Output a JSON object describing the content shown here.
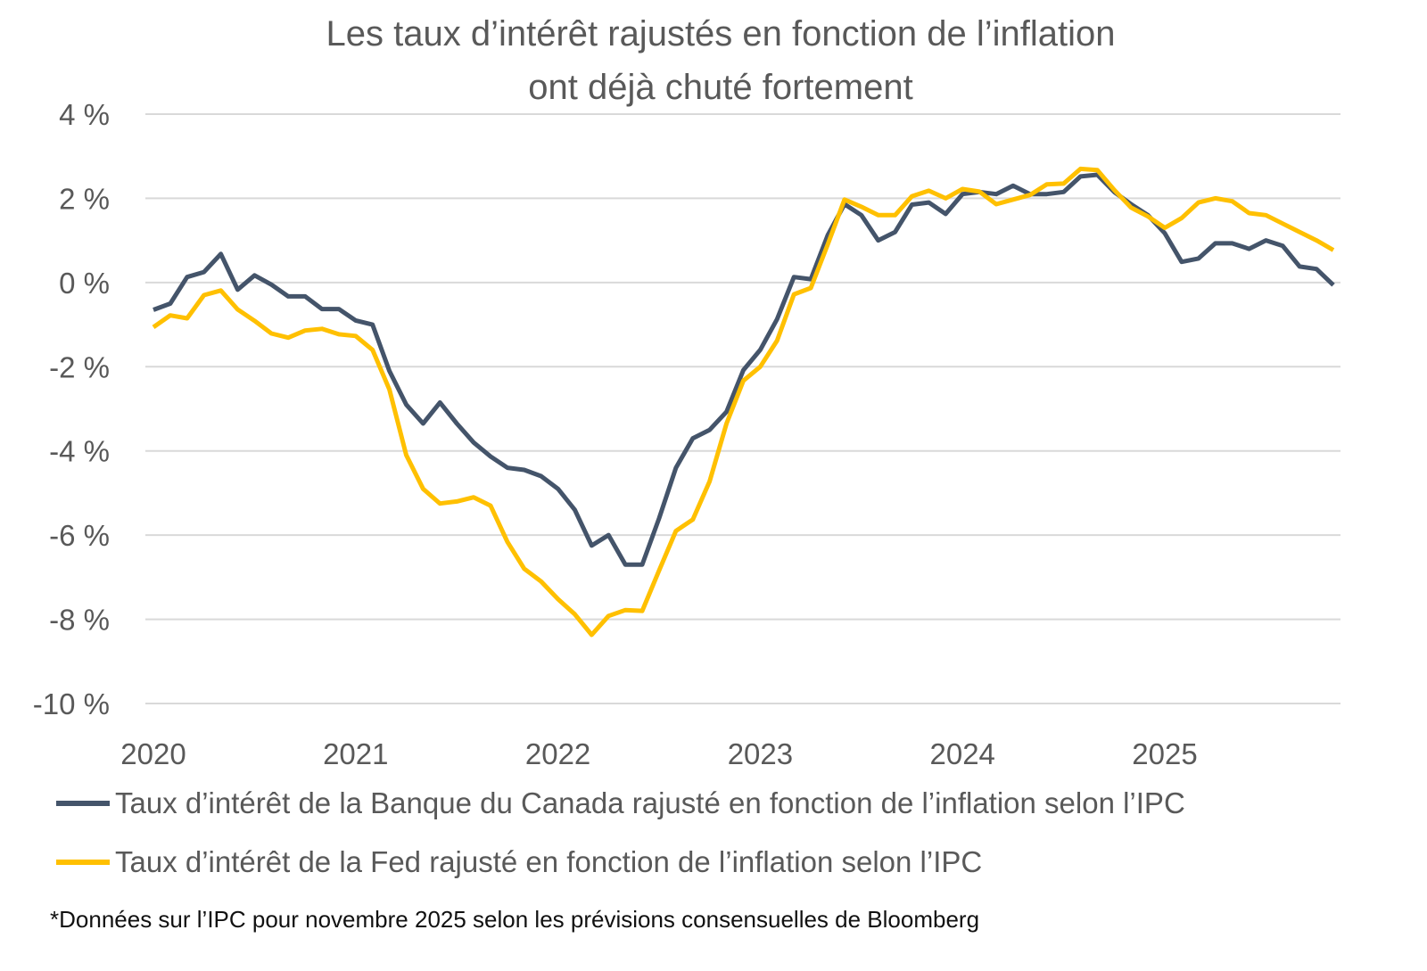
{
  "chart_data": {
    "type": "line",
    "title": [
      "Les taux d’intérêt rajustés en fonction de l’inflation",
      "ont déjà chuté fortement"
    ],
    "xlabel": "",
    "ylabel": "",
    "ylim": [
      -10,
      4
    ],
    "y_ticks": [
      4,
      2,
      0,
      -2,
      -4,
      -6,
      -8,
      -10
    ],
    "y_tick_labels": [
      "4 %",
      "2 %",
      "0 %",
      "-2 %",
      "-4 %",
      "-6 %",
      "-8 %",
      "-10 %"
    ],
    "x_tick_labels": [
      "2020",
      "2021",
      "2022",
      "2023",
      "2024",
      "2025"
    ],
    "grid": true,
    "legend_position": "bottom",
    "x": [
      "2020-01",
      "2020-02",
      "2020-03",
      "2020-04",
      "2020-05",
      "2020-06",
      "2020-07",
      "2020-08",
      "2020-09",
      "2020-10",
      "2020-11",
      "2020-12",
      "2021-01",
      "2021-02",
      "2021-03",
      "2021-04",
      "2021-05",
      "2021-06",
      "2021-07",
      "2021-08",
      "2021-09",
      "2021-10",
      "2021-11",
      "2021-12",
      "2022-01",
      "2022-02",
      "2022-03",
      "2022-04",
      "2022-05",
      "2022-06",
      "2022-07",
      "2022-08",
      "2022-09",
      "2022-10",
      "2022-11",
      "2022-12",
      "2023-01",
      "2023-02",
      "2023-03",
      "2023-04",
      "2023-05",
      "2023-06",
      "2023-07",
      "2023-08",
      "2023-09",
      "2023-10",
      "2023-11",
      "2023-12",
      "2024-01",
      "2024-02",
      "2024-03",
      "2024-04",
      "2024-05",
      "2024-06",
      "2024-07",
      "2024-08",
      "2024-09",
      "2024-10",
      "2024-11",
      "2024-12",
      "2025-01",
      "2025-02",
      "2025-03",
      "2025-04",
      "2025-05",
      "2025-06",
      "2025-07",
      "2025-08",
      "2025-09",
      "2025-10",
      "2025-11"
    ],
    "series": [
      {
        "name": "Taux d’intérêt de la Banque du Canada rajusté en fonction de l’inflation selon l’IPC",
        "color": "#44546A",
        "values": [
          -0.65,
          -0.5,
          0.13,
          0.25,
          0.68,
          -0.17,
          0.17,
          -0.05,
          -0.33,
          -0.33,
          -0.63,
          -0.63,
          -0.9,
          -1.0,
          -2.1,
          -2.9,
          -3.35,
          -2.85,
          -3.35,
          -3.8,
          -4.13,
          -4.4,
          -4.45,
          -4.6,
          -4.9,
          -5.4,
          -6.25,
          -6.0,
          -6.7,
          -6.7,
          -5.6,
          -4.4,
          -3.7,
          -3.5,
          -3.07,
          -2.08,
          -1.6,
          -0.87,
          0.13,
          0.08,
          1.12,
          1.86,
          1.6,
          1.0,
          1.2,
          1.85,
          1.9,
          1.63,
          2.1,
          2.15,
          2.1,
          2.3,
          2.1,
          2.1,
          2.15,
          2.52,
          2.56,
          2.15,
          1.86,
          1.6,
          1.17,
          0.49,
          0.57,
          0.93,
          0.93,
          0.8,
          1.0,
          0.87,
          0.38,
          0.32,
          -0.06
        ]
      },
      {
        "name": "Taux d’intérêt de la Fed rajusté en fonction de l’inflation selon l’IPC",
        "color": "#FFC000",
        "values": [
          -1.06,
          -0.78,
          -0.85,
          -0.3,
          -0.19,
          -0.64,
          -0.91,
          -1.21,
          -1.31,
          -1.14,
          -1.1,
          -1.23,
          -1.27,
          -1.6,
          -2.54,
          -4.1,
          -4.9,
          -5.25,
          -5.2,
          -5.1,
          -5.3,
          -6.16,
          -6.8,
          -7.1,
          -7.52,
          -7.88,
          -8.37,
          -7.92,
          -7.78,
          -7.8,
          -6.84,
          -5.9,
          -5.63,
          -4.72,
          -3.35,
          -2.33,
          -2.0,
          -1.38,
          -0.28,
          -0.13,
          0.9,
          1.97,
          1.8,
          1.6,
          1.6,
          2.05,
          2.18,
          2.0,
          2.22,
          2.16,
          1.86,
          1.97,
          2.08,
          2.33,
          2.35,
          2.7,
          2.67,
          2.2,
          1.78,
          1.57,
          1.3,
          1.53,
          1.9,
          2.0,
          1.93,
          1.65,
          1.6,
          1.4,
          1.2,
          1.0,
          0.77
        ]
      }
    ],
    "footnote": "*Données sur l’IPC pour novembre 2025 selon les prévisions consensuelles de Bloomberg"
  }
}
